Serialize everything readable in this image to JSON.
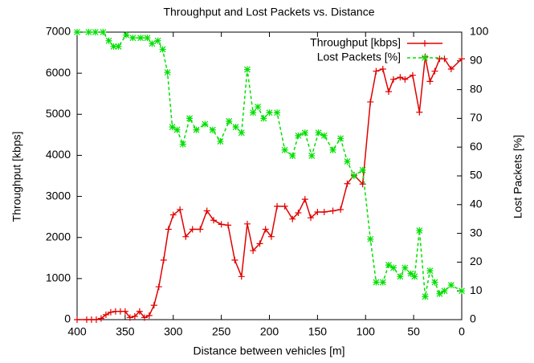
{
  "chart_data": {
    "type": "line",
    "title": "Throughput and Lost Packets vs. Distance",
    "x_label": "Distance between vehicles [m]",
    "y_label": "Throughput [kbps]",
    "y2_label": "Lost Packets [%]",
    "xlim": [
      400,
      0
    ],
    "xticks": [
      400,
      350,
      300,
      250,
      200,
      150,
      100,
      50,
      0
    ],
    "ylim": [
      0,
      7000
    ],
    "yticks": [
      0,
      1000,
      2000,
      3000,
      4000,
      5000,
      6000,
      7000
    ],
    "y2lim": [
      0,
      100
    ],
    "y2ticks": [
      0,
      10,
      20,
      30,
      40,
      50,
      60,
      70,
      80,
      90,
      100
    ],
    "legend": "top-right",
    "series": [
      {
        "name": "Throughput [kbps]",
        "color": "#e00000",
        "axis": "y",
        "marker": "plus",
        "dash": false,
        "x": [
          400,
          390,
          385,
          380,
          375,
          370,
          365,
          360,
          355,
          350,
          345,
          340,
          335,
          330,
          325,
          320,
          315,
          310,
          305,
          300,
          293,
          287,
          280,
          272,
          265,
          258,
          250,
          243,
          236,
          229,
          223,
          217,
          210,
          204,
          198,
          192,
          184,
          176,
          170,
          163,
          157,
          150,
          143,
          134,
          126,
          119,
          112,
          103,
          95,
          89,
          82,
          76,
          71,
          64,
          59,
          51,
          44,
          38,
          33,
          28,
          23,
          18,
          11,
          0
        ],
        "values": [
          0,
          0,
          0,
          0,
          30,
          120,
          180,
          200,
          200,
          200,
          50,
          80,
          200,
          50,
          100,
          350,
          800,
          1450,
          2200,
          2550,
          2680,
          2020,
          2200,
          2200,
          2650,
          2420,
          2320,
          2300,
          1450,
          1050,
          2330,
          1680,
          1850,
          2200,
          2020,
          2760,
          2760,
          2450,
          2600,
          2930,
          2480,
          2620,
          2620,
          2650,
          2680,
          3310,
          3520,
          3300,
          5300,
          6050,
          6100,
          5550,
          5850,
          5900,
          5850,
          5950,
          5050,
          6400,
          5800,
          6050,
          6350,
          6350,
          6100,
          6350
        ]
      },
      {
        "name": "Lost Packets [%]",
        "color": "#00e000",
        "axis": "y2",
        "marker": "star",
        "dash": true,
        "x": [
          400,
          388,
          381,
          373,
          367,
          362,
          357,
          349,
          342,
          334,
          327,
          322,
          316,
          311,
          306,
          301,
          296,
          290,
          283,
          276,
          267,
          259,
          251,
          242,
          235,
          229,
          223,
          217,
          212,
          206,
          200,
          192,
          184,
          176,
          170,
          163,
          156,
          149,
          143,
          134,
          126,
          119,
          112,
          103,
          95,
          89,
          82,
          76,
          71,
          64,
          59,
          53,
          49,
          44,
          38,
          33,
          28,
          23,
          18,
          11,
          0
        ],
        "values": [
          100,
          100,
          100,
          100,
          97,
          95,
          95,
          99,
          98,
          98,
          98,
          96,
          97,
          94,
          86,
          67,
          66,
          61,
          70,
          66,
          68,
          66,
          62,
          69,
          67,
          65,
          87,
          72,
          74,
          70,
          72,
          72,
          59,
          57,
          64,
          65,
          57,
          65,
          64,
          59,
          63,
          55,
          50,
          52,
          28,
          13,
          13,
          19,
          18,
          15,
          18,
          16,
          15,
          31,
          8,
          17,
          13,
          9,
          10,
          12,
          10
        ]
      }
    ]
  }
}
